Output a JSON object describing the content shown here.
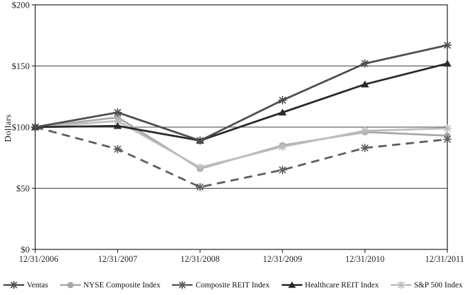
{
  "chart_data": {
    "type": "line",
    "title": "",
    "xlabel": "",
    "ylabel": "Dollars",
    "categories": [
      "12/31/2006",
      "12/31/2007",
      "12/31/2008",
      "12/31/2009",
      "12/31/2010",
      "12/31/2011"
    ],
    "series": [
      {
        "name": "Ventas",
        "marker": "star",
        "color": "#4e4e4e",
        "line": "solid",
        "values": [
          100,
          112,
          89,
          122,
          152,
          167
        ]
      },
      {
        "name": "NYSE Composite Index",
        "marker": "circle",
        "color": "#a8a8a8",
        "line": "solid",
        "values": [
          100,
          108,
          66,
          85,
          96,
          93
        ]
      },
      {
        "name": "Composite REIT Index",
        "marker": "star",
        "color": "#5d5d5d",
        "line": "dashed",
        "values": [
          100,
          82,
          51,
          65,
          83,
          90
        ]
      },
      {
        "name": "Healthcare REIT Index",
        "marker": "triangle",
        "color": "#292929",
        "line": "solid",
        "values": [
          100,
          101,
          89,
          112,
          135,
          152
        ]
      },
      {
        "name": "S&P 500 Index",
        "marker": "star",
        "color": "#bdbdbd",
        "line": "solid",
        "values": [
          100,
          105,
          67,
          84,
          97,
          99
        ]
      }
    ],
    "ylim": [
      0,
      200
    ],
    "yticks": [
      0,
      50,
      100,
      150,
      200
    ],
    "ytick_labels": [
      "$0",
      "$50",
      "$100",
      "$150",
      "$200"
    ],
    "grid": true,
    "legend_position": "bottom",
    "axis_color": "#2e2e2e",
    "grid_color": "#3d3d3d"
  }
}
